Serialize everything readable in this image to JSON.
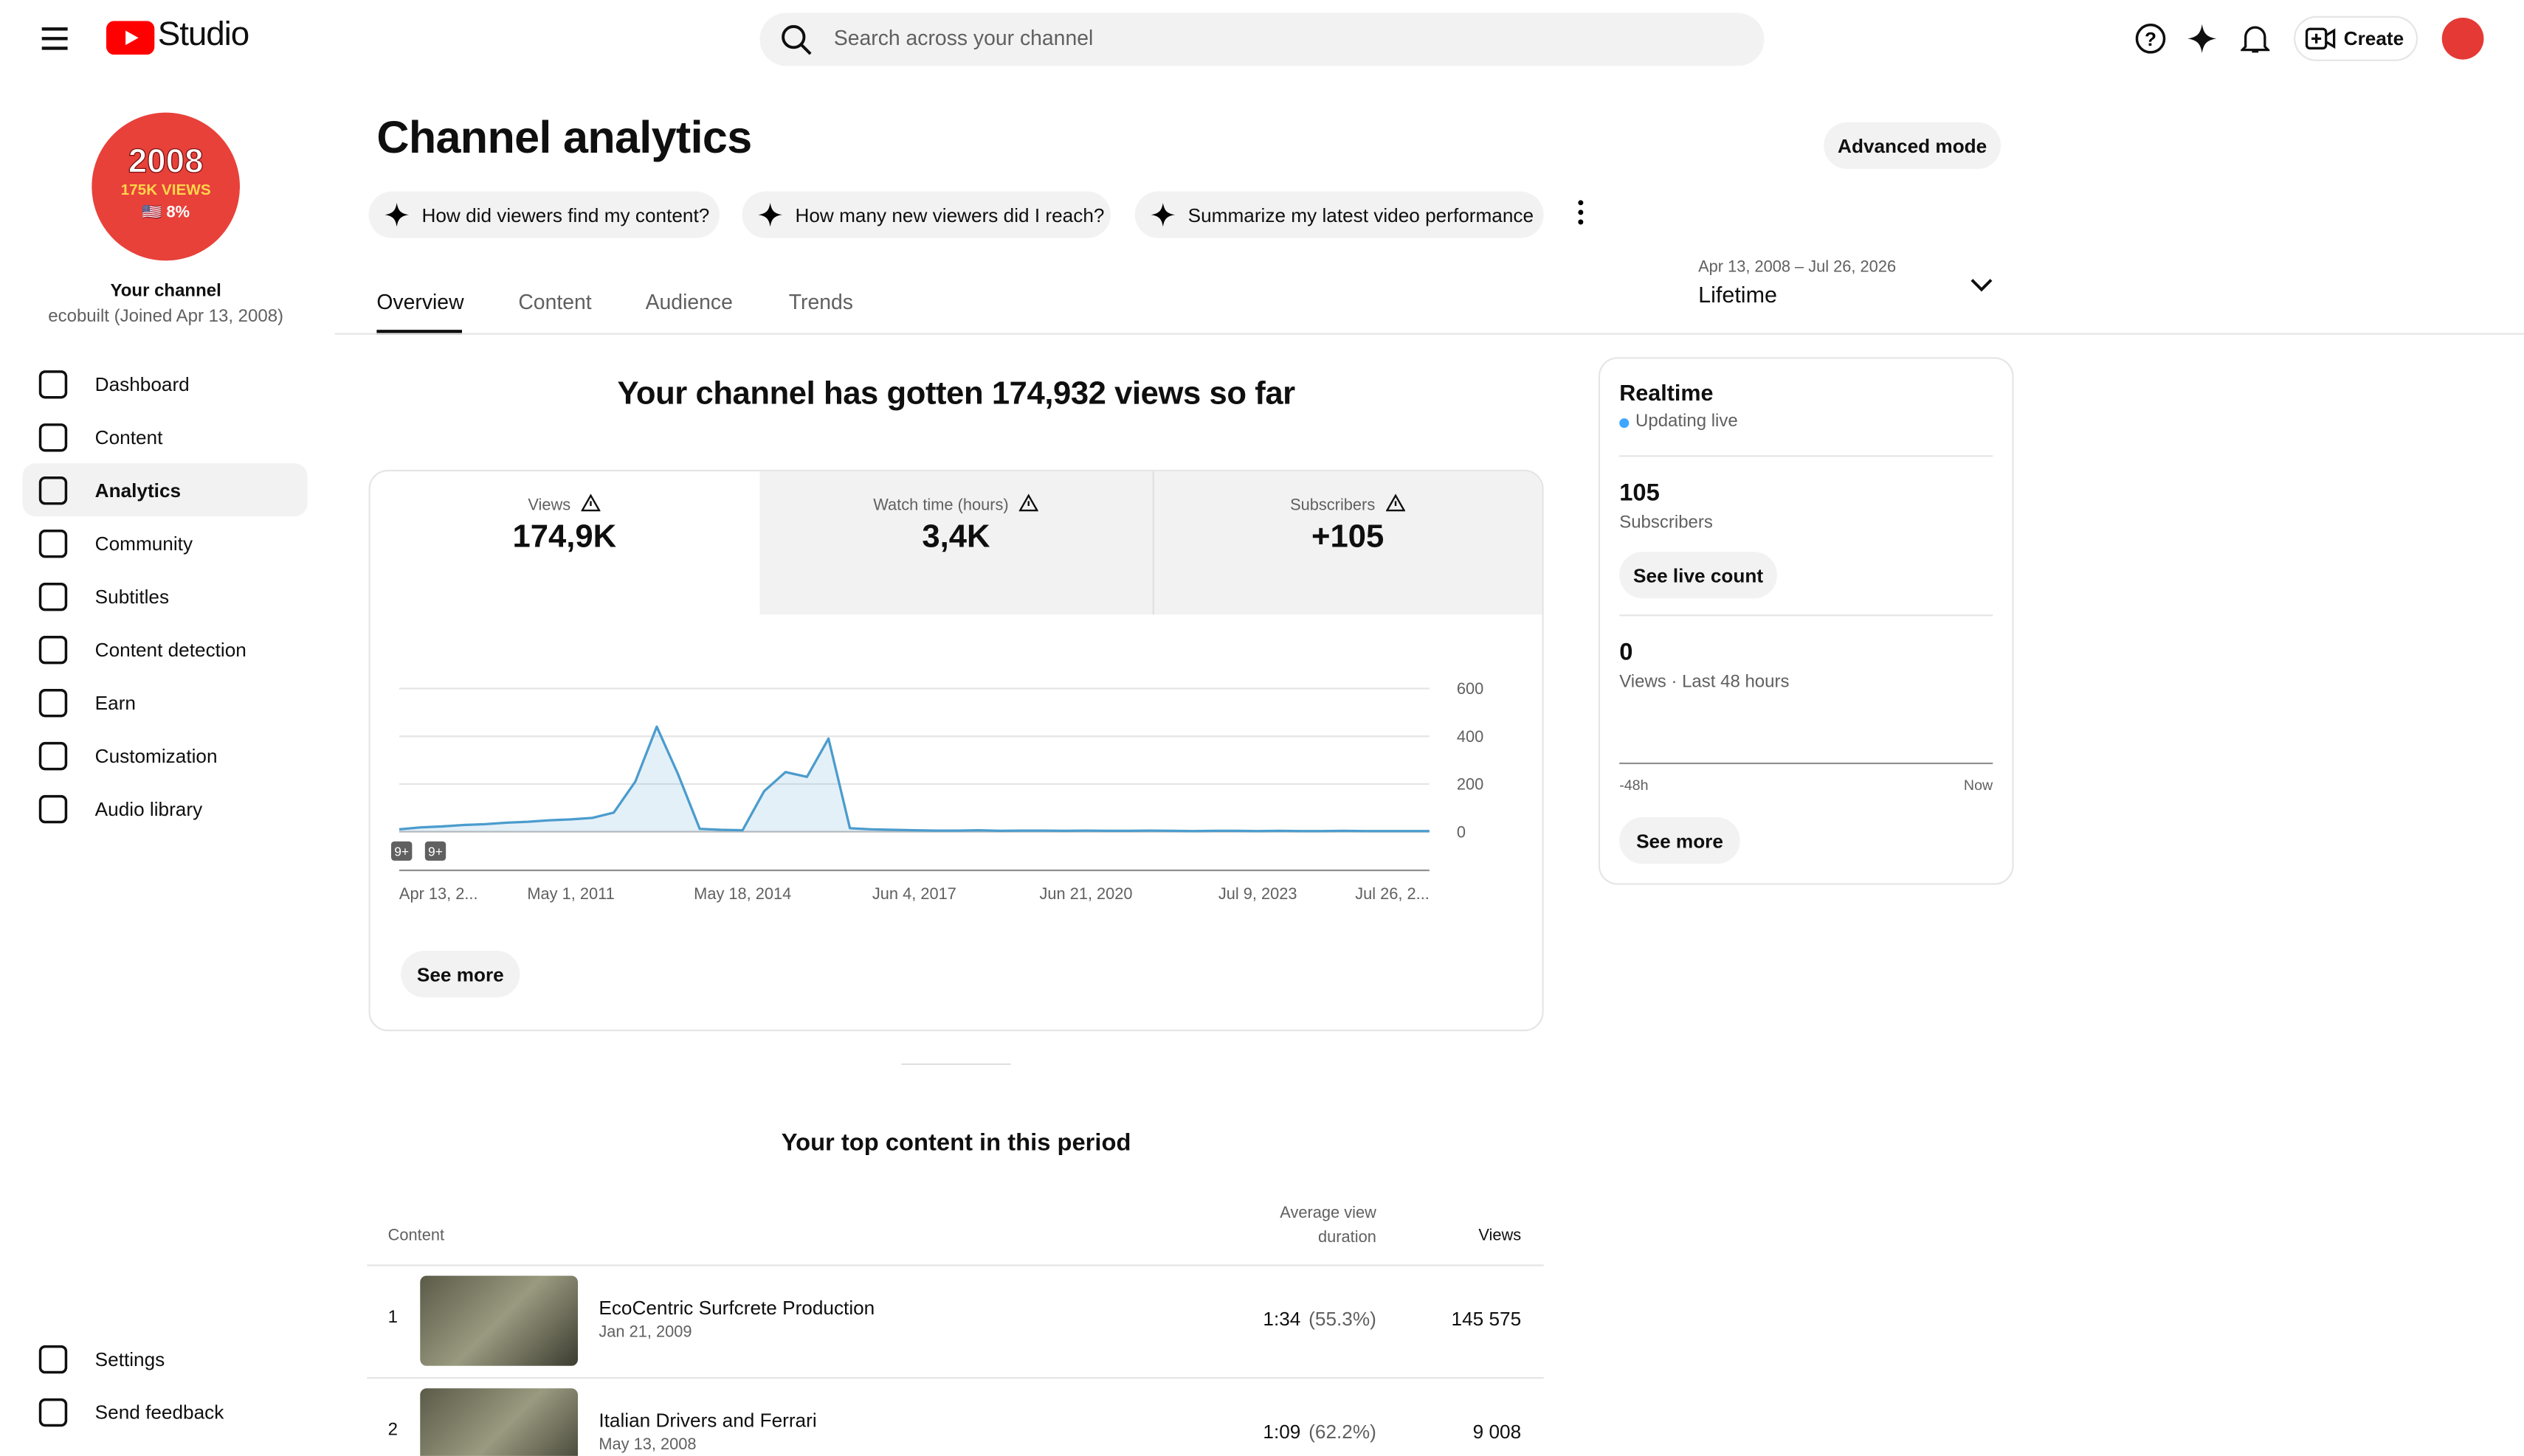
{
  "header": {
    "logo": "Studio",
    "search_placeholder": "Search across your channel",
    "create": "Create"
  },
  "channel": {
    "badge": [
      "2008",
      "175K VIEWS",
      "🇺🇸 8%"
    ],
    "label": "Your channel",
    "handle": "ecobuilt (Joined Apr 13, 2008)"
  },
  "sidebar": {
    "nav": [
      "Dashboard",
      "Content",
      "Analytics",
      "Community",
      "Subtitles",
      "Content detection",
      "Earn",
      "Customization",
      "Audio library"
    ],
    "bottom": [
      "Settings",
      "Send feedback"
    ]
  },
  "page": {
    "title": "Channel analytics",
    "advanced_mode": "Advanced mode",
    "prompts": [
      "How did viewers find my content?",
      "How many new viewers did I reach?",
      "Summarize my latest video performance"
    ],
    "date_range": "Apr 13, 2008 – Jul 26, 2026",
    "period": "Lifetime",
    "tabs": [
      "Overview",
      "Content",
      "Audience",
      "Trends"
    ],
    "headline": "Your channel has gotten 174,932 views so far"
  },
  "metrics": [
    {
      "label": "Views",
      "value": "174,9K"
    },
    {
      "label": "Watch time (hours)",
      "value": "3,4K"
    },
    {
      "label": "Subscribers",
      "value": "+105"
    }
  ],
  "chart_data": {
    "type": "line",
    "color": "#4b9ccd",
    "grid": true,
    "ylim": [
      0,
      600
    ],
    "yticks": [
      0,
      200,
      400,
      600
    ],
    "annotations": [
      "9+",
      "9+"
    ],
    "categories": [
      "Apr 13, 2...",
      null,
      null,
      null,
      null,
      null,
      null,
      null,
      "May 1, 2011",
      null,
      null,
      null,
      null,
      null,
      null,
      null,
      "May 18, 2014",
      null,
      null,
      null,
      null,
      null,
      null,
      null,
      "Jun 4, 2017",
      null,
      null,
      null,
      null,
      null,
      null,
      null,
      "Jun 21, 2020",
      null,
      null,
      null,
      null,
      null,
      null,
      null,
      "Jul 9, 2023",
      null,
      null,
      null,
      null,
      null,
      null,
      null,
      "Jul 26, 2..."
    ],
    "values": [
      10,
      18,
      22,
      28,
      32,
      38,
      42,
      48,
      52,
      58,
      80,
      210,
      440,
      240,
      12,
      8,
      6,
      170,
      250,
      230,
      390,
      15,
      10,
      8,
      6,
      5,
      5,
      6,
      4,
      5,
      5,
      4,
      5,
      4,
      4,
      5,
      4,
      3,
      4,
      4,
      3,
      4,
      3,
      3,
      4,
      3,
      3,
      3,
      3
    ]
  },
  "see_more": "See more",
  "realtime": {
    "title": "Realtime",
    "status": "Updating live",
    "subscribers": "105",
    "subscribers_label": "Subscribers",
    "live_count": "See live count",
    "views": "0",
    "views_label": "Views · Last 48 hours",
    "axis_start": "-48h",
    "axis_end": "Now",
    "see_more": "See more"
  },
  "top_content": {
    "title": "Your top content in this period",
    "columns": [
      "Content",
      "Average view duration",
      "Views"
    ],
    "rows": [
      [
        "1",
        "EcoCentric Surfcrete Production",
        "Jan 21, 2009",
        "1:34",
        "(55.3%)",
        "145 575"
      ],
      [
        "2",
        "Italian Drivers and Ferrari",
        "May 13, 2008",
        "1:09",
        "(62.2%)",
        "9 008"
      ]
    ]
  }
}
